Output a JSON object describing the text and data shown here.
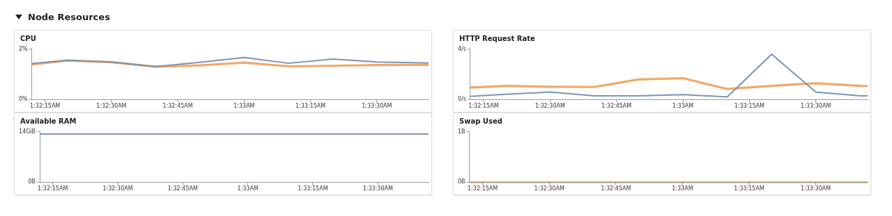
{
  "chart_data": [
    {
      "type": "other",
      "title": "Node Resources"
    },
    {
      "type": "line",
      "title": "CPU",
      "x": [
        1.53667,
        1.53889,
        1.54167,
        1.54444,
        1.54722,
        1.55,
        1.55278,
        1.55556,
        1.55833,
        1.56111,
        1.56158
      ],
      "series": [
        {
          "color": "#7b93b3",
          "values": [
            1.43,
            1.56,
            1.49,
            1.31,
            1.48,
            1.67,
            1.44,
            1.61,
            1.49,
            1.46,
            1.45
          ]
        },
        {
          "color": "#f0a868",
          "values": [
            1.39,
            1.55,
            1.48,
            1.3,
            1.36,
            1.47,
            1.32,
            1.34,
            1.37,
            1.38,
            1.38
          ]
        }
      ],
      "xlim": [
        1.53667,
        1.56158
      ],
      "xticks": [
        {
          "value": 1.5375,
          "label": "1:32:15AM"
        },
        {
          "value": 1.541667,
          "label": "1:32:30AM"
        },
        {
          "value": 1.545833,
          "label": "1:32:45AM"
        },
        {
          "value": 1.55,
          "label": "1:33AM"
        },
        {
          "value": 1.554167,
          "label": "1:33:15AM"
        },
        {
          "value": 1.558333,
          "label": "1:33:30AM"
        }
      ],
      "ylim": [
        0,
        2
      ],
      "yticks": [
        {
          "value": 0,
          "label": "0%"
        },
        {
          "value": 2,
          "label": "2%"
        }
      ],
      "grid": false,
      "legend": false,
      "marker": "none",
      "line_style": "solid"
    },
    {
      "type": "line",
      "title": "HTTP Request Rate",
      "x": [
        1.53667,
        1.53889,
        1.54167,
        1.54444,
        1.54722,
        1.55,
        1.55278,
        1.55556,
        1.55833,
        1.56111,
        1.56158
      ],
      "series": [
        {
          "color": "#7b93b3",
          "values": [
            0.26,
            0.42,
            0.6,
            0.3,
            0.3,
            0.4,
            0.21,
            3.6,
            0.6,
            0.3,
            0.3
          ]
        },
        {
          "color": "#f0a868",
          "values": [
            0.95,
            1.09,
            1.02,
            1.0,
            1.6,
            1.7,
            0.84,
            1.09,
            1.3,
            1.09,
            1.07
          ]
        }
      ],
      "xlim": [
        1.53667,
        1.56158
      ],
      "xticks": [
        {
          "value": 1.5375,
          "label": "1:32:15AM"
        },
        {
          "value": 1.541667,
          "label": "1:32:30AM"
        },
        {
          "value": 1.545833,
          "label": "1:32:45AM"
        },
        {
          "value": 1.55,
          "label": "1:33AM"
        },
        {
          "value": 1.554167,
          "label": "1:33:15AM"
        },
        {
          "value": 1.558333,
          "label": "1:33:30AM"
        }
      ],
      "ylim": [
        0,
        4
      ],
      "yticks": [
        {
          "value": 0,
          "label": "0/s"
        },
        {
          "value": 4,
          "label": "4/s"
        }
      ],
      "grid": false,
      "legend": false,
      "marker": "none",
      "line_style": "solid"
    },
    {
      "type": "line",
      "title": "Available RAM",
      "x": [
        1.53667,
        1.56158
      ],
      "series": [
        {
          "color": "#7b93b3",
          "values": [
            13.4,
            13.4
          ]
        }
      ],
      "xlim": [
        1.53667,
        1.56158
      ],
      "xticks": [
        {
          "value": 1.5375,
          "label": "1:32:15AM"
        },
        {
          "value": 1.541667,
          "label": "1:32:30AM"
        },
        {
          "value": 1.545833,
          "label": "1:32:45AM"
        },
        {
          "value": 1.55,
          "label": "1:33AM"
        },
        {
          "value": 1.554167,
          "label": "1:33:15AM"
        },
        {
          "value": 1.558333,
          "label": "1:33:30AM"
        }
      ],
      "ylim": [
        0,
        14
      ],
      "yticks": [
        {
          "value": 0,
          "label": "0B"
        },
        {
          "value": 14,
          "label": "14GiB"
        }
      ],
      "grid": false,
      "legend": false,
      "marker": "none",
      "line_style": "solid"
    },
    {
      "type": "line",
      "title": "Swap Used",
      "x": [
        1.53667,
        1.56158
      ],
      "series": [
        {
          "color": "#a89060",
          "values": [
            0,
            0
          ]
        }
      ],
      "xlim": [
        1.53667,
        1.56158
      ],
      "xticks": [
        {
          "value": 1.5375,
          "label": "1:32:15AM"
        },
        {
          "value": 1.541667,
          "label": "1:32:30AM"
        },
        {
          "value": 1.545833,
          "label": "1:32:45AM"
        },
        {
          "value": 1.55,
          "label": "1:33AM"
        },
        {
          "value": 1.554167,
          "label": "1:33:15AM"
        },
        {
          "value": 1.558333,
          "label": "1:33:30AM"
        }
      ],
      "ylim": [
        0,
        1
      ],
      "yticks": [
        {
          "value": 0,
          "label": "0B"
        },
        {
          "value": 1,
          "label": "1B"
        }
      ],
      "grid": false,
      "legend": false,
      "marker": "none",
      "line_style": "solid"
    }
  ]
}
